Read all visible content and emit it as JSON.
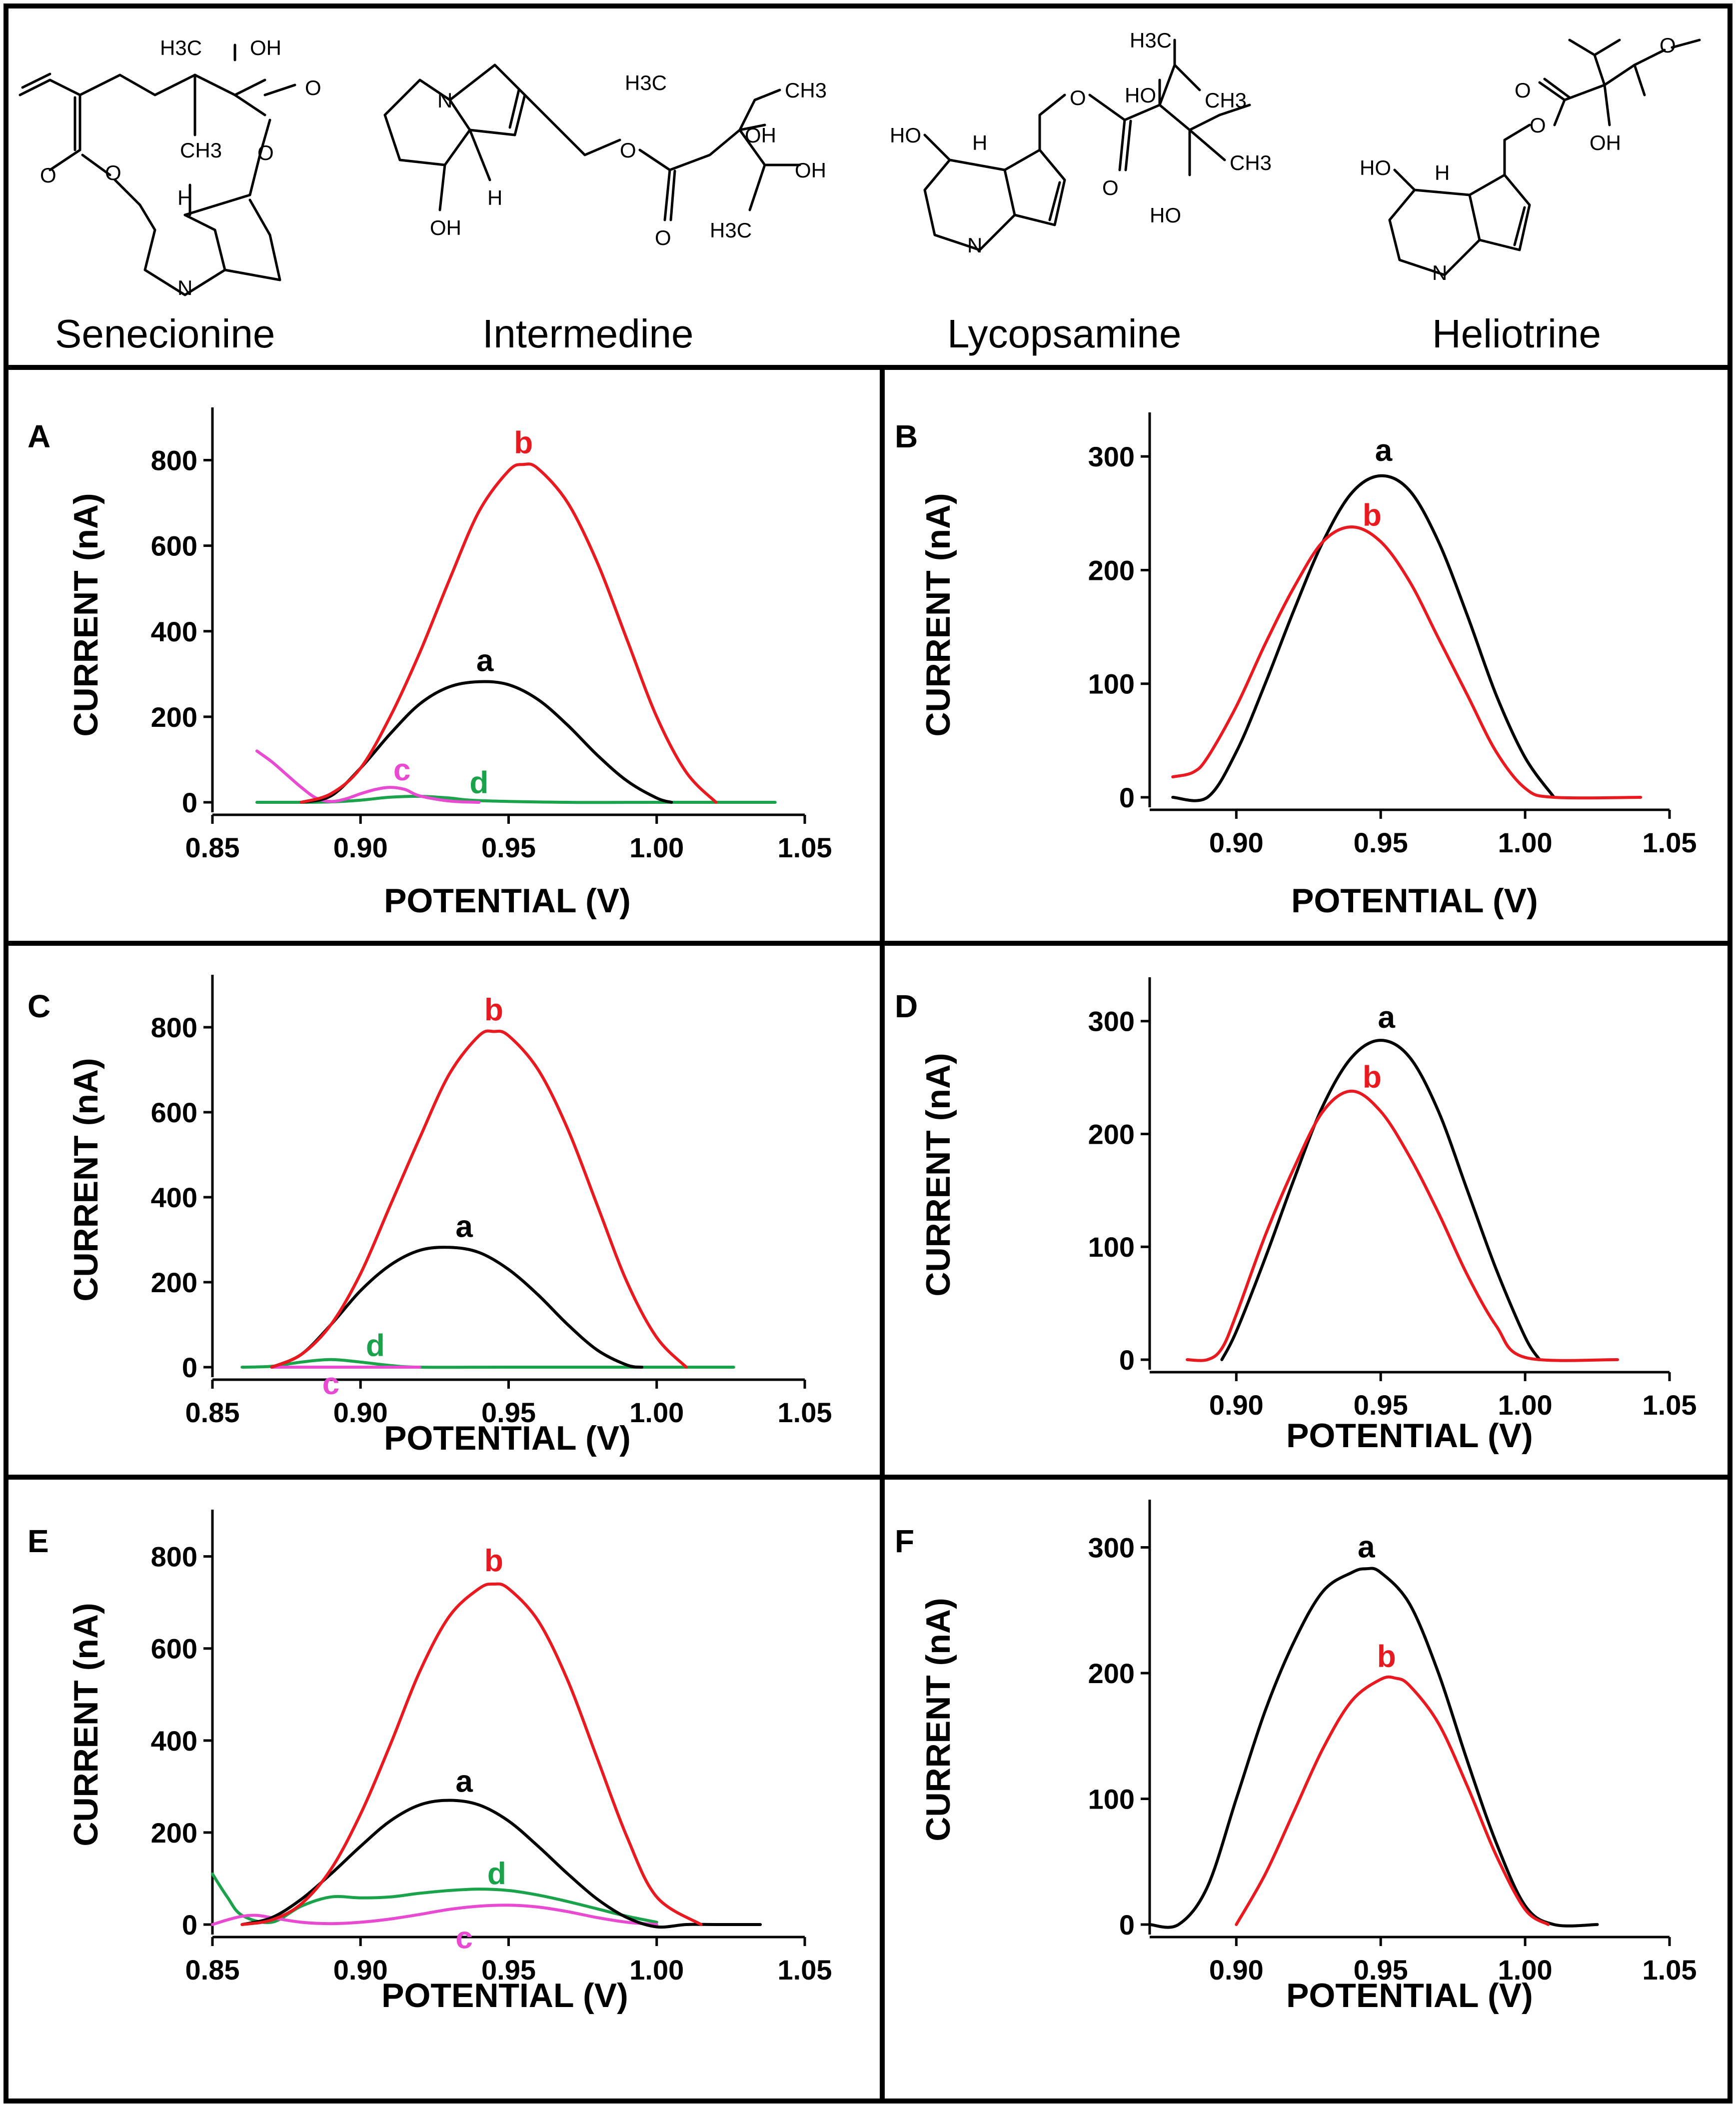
{
  "compounds": [
    {
      "name": "Senecionine",
      "atoms": [
        "H3C",
        "OH",
        "CH3",
        "O",
        "O",
        "O",
        "O",
        "H",
        "N"
      ]
    },
    {
      "name": "Intermedine",
      "atoms": [
        "N",
        "H3C",
        "CH3",
        "OH",
        "OH",
        "H",
        "OH",
        "O",
        "O",
        "H3C"
      ]
    },
    {
      "name": "Lycopsamine",
      "atoms": [
        "H3C",
        "HO",
        "CH3",
        "HO",
        "H",
        "O",
        "CH3",
        "O",
        "HO",
        "N"
      ]
    },
    {
      "name": "Heliotrine",
      "atoms": [
        "O",
        "O",
        "HO",
        "H",
        "OH",
        "O",
        "N"
      ]
    }
  ],
  "colors": {
    "a": "#000000",
    "b": "#e8191f",
    "c": "#e84ad1",
    "d": "#1aa34a"
  },
  "chart_data": [
    {
      "panel": "A",
      "type": "line",
      "xlabel": "POTENTIAL (V)",
      "ylabel": "CURRENT (nA)",
      "xlim": [
        0.85,
        1.05
      ],
      "ylim": [
        0,
        900
      ],
      "xticks": [
        "0.85",
        "0.90",
        "0.95",
        "1.00",
        "1.05"
      ],
      "yticks": [
        "0",
        "200",
        "400",
        "600",
        "800"
      ],
      "series": [
        {
          "name": "a",
          "x": [
            0.88,
            0.89,
            0.9,
            0.91,
            0.92,
            0.93,
            0.94,
            0.95,
            0.96,
            0.97,
            0.98,
            0.99,
            1.0,
            1.005
          ],
          "y": [
            0,
            15,
            80,
            160,
            230,
            270,
            282,
            275,
            240,
            180,
            110,
            50,
            10,
            0
          ]
        },
        {
          "name": "b",
          "x": [
            0.88,
            0.89,
            0.9,
            0.91,
            0.92,
            0.93,
            0.94,
            0.95,
            0.955,
            0.96,
            0.97,
            0.98,
            0.99,
            1.0,
            1.01,
            1.02
          ],
          "y": [
            0,
            20,
            80,
            200,
            350,
            520,
            680,
            775,
            790,
            780,
            700,
            560,
            380,
            200,
            70,
            0
          ]
        },
        {
          "name": "c",
          "x": [
            0.865,
            0.87,
            0.875,
            0.88,
            0.885,
            0.89,
            0.895,
            0.9,
            0.905,
            0.91,
            0.915,
            0.92,
            0.93,
            0.94
          ],
          "y": [
            120,
            95,
            65,
            35,
            10,
            2,
            8,
            20,
            30,
            35,
            30,
            15,
            3,
            0
          ]
        },
        {
          "name": "d",
          "x": [
            0.865,
            0.88,
            0.89,
            0.9,
            0.91,
            0.92,
            0.93,
            0.94,
            0.97,
            1.0,
            1.04
          ],
          "y": [
            0,
            0,
            1,
            5,
            12,
            14,
            10,
            4,
            0,
            0,
            0
          ]
        }
      ],
      "labels": [
        {
          "text": "b",
          "x": 0.955,
          "y": 840
        },
        {
          "text": "a",
          "x": 0.942,
          "y": 330
        },
        {
          "text": "c",
          "x": 0.914,
          "y": 75
        },
        {
          "text": "d",
          "x": 0.94,
          "y": 45
        }
      ]
    },
    {
      "panel": "B",
      "type": "line",
      "xlabel": "POTENTIAL (V)",
      "ylabel": "CURRENT (nA)",
      "xlim": [
        0.87,
        1.05
      ],
      "ylim": [
        0,
        330
      ],
      "xticks": [
        "0.90",
        "0.95",
        "1.00",
        "1.05"
      ],
      "yticks": [
        "0",
        "100",
        "200",
        "300"
      ],
      "series": [
        {
          "name": "a",
          "x": [
            0.878,
            0.89,
            0.9,
            0.91,
            0.92,
            0.93,
            0.94,
            0.95,
            0.96,
            0.97,
            0.98,
            0.99,
            1.0,
            1.01
          ],
          "y": [
            0,
            0,
            40,
            100,
            165,
            225,
            268,
            283,
            270,
            225,
            160,
            90,
            35,
            0
          ]
        },
        {
          "name": "b",
          "x": [
            0.878,
            0.885,
            0.89,
            0.9,
            0.91,
            0.92,
            0.93,
            0.94,
            0.95,
            0.96,
            0.97,
            0.98,
            0.99,
            1.0,
            1.01,
            1.04
          ],
          "y": [
            18,
            22,
            35,
            80,
            135,
            185,
            225,
            238,
            225,
            190,
            140,
            90,
            40,
            8,
            0,
            0
          ]
        }
      ],
      "labels": [
        {
          "text": "a",
          "x": 0.951,
          "y": 305
        },
        {
          "text": "b",
          "x": 0.947,
          "y": 248
        }
      ]
    },
    {
      "panel": "C",
      "type": "line",
      "xlabel": "POTENTIAL (V)",
      "ylabel": "CURRENT (nA)",
      "xlim": [
        0.85,
        1.05
      ],
      "ylim": [
        0,
        900
      ],
      "xticks": [
        "0.85",
        "0.90",
        "0.95",
        "1.00",
        "1.05"
      ],
      "yticks": [
        "0",
        "200",
        "400",
        "600",
        "800"
      ],
      "series": [
        {
          "name": "a",
          "x": [
            0.87,
            0.88,
            0.89,
            0.9,
            0.91,
            0.92,
            0.93,
            0.94,
            0.95,
            0.96,
            0.97,
            0.98,
            0.99,
            0.995
          ],
          "y": [
            0,
            30,
            100,
            180,
            240,
            275,
            282,
            270,
            230,
            170,
            100,
            40,
            5,
            0
          ]
        },
        {
          "name": "b",
          "x": [
            0.87,
            0.88,
            0.89,
            0.9,
            0.91,
            0.92,
            0.93,
            0.94,
            0.945,
            0.95,
            0.96,
            0.97,
            0.98,
            0.99,
            1.0,
            1.01
          ],
          "y": [
            0,
            30,
            100,
            220,
            380,
            540,
            690,
            780,
            790,
            780,
            700,
            560,
            380,
            200,
            70,
            0
          ]
        },
        {
          "name": "c",
          "x": [
            0.87,
            0.88,
            0.89,
            0.9,
            0.91,
            0.92
          ],
          "y": [
            0,
            0,
            0,
            0,
            0,
            0
          ]
        },
        {
          "name": "d",
          "x": [
            0.86,
            0.87,
            0.88,
            0.89,
            0.9,
            0.91,
            0.92,
            0.95,
            1.0,
            1.026
          ],
          "y": [
            0,
            2,
            12,
            18,
            12,
            4,
            0,
            0,
            0,
            0
          ]
        }
      ],
      "labels": [
        {
          "text": "b",
          "x": 0.945,
          "y": 840
        },
        {
          "text": "a",
          "x": 0.935,
          "y": 330
        },
        {
          "text": "d",
          "x": 0.905,
          "y": 50
        },
        {
          "text": "c",
          "x": 0.89,
          "y": -40
        }
      ]
    },
    {
      "panel": "D",
      "type": "line",
      "xlabel": "POTENTIAL (V)",
      "ylabel": "CURRENT (nA)",
      "xlim": [
        0.87,
        1.05
      ],
      "ylim": [
        0,
        330
      ],
      "xticks": [
        "0.90",
        "0.95",
        "1.00",
        "1.05"
      ],
      "yticks": [
        "0",
        "100",
        "200",
        "300"
      ],
      "series": [
        {
          "name": "a",
          "x": [
            0.895,
            0.9,
            0.91,
            0.92,
            0.93,
            0.94,
            0.95,
            0.96,
            0.97,
            0.98,
            0.99,
            1.0,
            1.005
          ],
          "y": [
            0,
            25,
            90,
            160,
            225,
            268,
            283,
            268,
            220,
            150,
            80,
            20,
            0
          ]
        },
        {
          "name": "b",
          "x": [
            0.883,
            0.89,
            0.895,
            0.9,
            0.91,
            0.92,
            0.93,
            0.94,
            0.95,
            0.96,
            0.97,
            0.98,
            0.99,
            1.0,
            1.032
          ],
          "y": [
            0,
            0,
            10,
            40,
            110,
            170,
            220,
            238,
            220,
            180,
            130,
            75,
            30,
            2,
            0
          ]
        }
      ],
      "labels": [
        {
          "text": "a",
          "x": 0.952,
          "y": 303
        },
        {
          "text": "b",
          "x": 0.947,
          "y": 250
        }
      ]
    },
    {
      "panel": "E",
      "type": "line",
      "xlabel": "POTENTIAL (V)",
      "ylabel": "CURRENT (nA)",
      "xlim": [
        0.85,
        1.05
      ],
      "ylim": [
        0,
        880
      ],
      "xticks": [
        "0.85",
        "0.90",
        "0.95",
        "1.00",
        "1.05"
      ],
      "yticks": [
        "0",
        "200",
        "400",
        "600",
        "800"
      ],
      "series": [
        {
          "name": "a",
          "x": [
            0.86,
            0.87,
            0.88,
            0.89,
            0.9,
            0.91,
            0.92,
            0.93,
            0.94,
            0.95,
            0.96,
            0.97,
            0.98,
            0.99,
            1.0,
            1.01,
            1.02,
            1.035
          ],
          "y": [
            0,
            15,
            55,
            110,
            170,
            225,
            260,
            270,
            260,
            225,
            170,
            110,
            55,
            15,
            -5,
            0,
            0,
            0
          ]
        },
        {
          "name": "b",
          "x": [
            0.86,
            0.87,
            0.88,
            0.89,
            0.9,
            0.91,
            0.92,
            0.93,
            0.94,
            0.945,
            0.95,
            0.96,
            0.97,
            0.98,
            0.99,
            1.0,
            1.015
          ],
          "y": [
            0,
            10,
            45,
            120,
            240,
            390,
            550,
            670,
            730,
            740,
            730,
            660,
            530,
            360,
            190,
            60,
            0
          ]
        },
        {
          "name": "c",
          "x": [
            0.85,
            0.855,
            0.86,
            0.865,
            0.87,
            0.88,
            0.89,
            0.9,
            0.91,
            0.92,
            0.93,
            0.94,
            0.95,
            0.96,
            0.97,
            0.98,
            0.99,
            1.0
          ],
          "y": [
            0,
            10,
            18,
            20,
            15,
            5,
            2,
            5,
            12,
            22,
            33,
            40,
            42,
            38,
            28,
            15,
            5,
            0
          ]
        },
        {
          "name": "d",
          "x": [
            0.85,
            0.855,
            0.86,
            0.87,
            0.88,
            0.89,
            0.9,
            0.91,
            0.92,
            0.93,
            0.94,
            0.95,
            0.96,
            0.97,
            0.98,
            0.99,
            1.0
          ],
          "y": [
            110,
            60,
            20,
            5,
            40,
            60,
            58,
            60,
            68,
            74,
            77,
            74,
            64,
            50,
            34,
            18,
            5
          ]
        }
      ],
      "labels": [
        {
          "text": "b",
          "x": 0.945,
          "y": 790
        },
        {
          "text": "a",
          "x": 0.935,
          "y": 310
        },
        {
          "text": "d",
          "x": 0.946,
          "y": 110
        },
        {
          "text": "c",
          "x": 0.935,
          "y": -30
        }
      ]
    },
    {
      "panel": "F",
      "type": "line",
      "xlabel": "POTENTIAL (V)",
      "ylabel": "CURRENT (nA)",
      "xlim": [
        0.87,
        1.05
      ],
      "ylim": [
        0,
        330
      ],
      "xticks": [
        "0.90",
        "0.95",
        "1.00",
        "1.05"
      ],
      "yticks": [
        "0",
        "100",
        "200",
        "300"
      ],
      "series": [
        {
          "name": "a",
          "x": [
            0.87,
            0.88,
            0.89,
            0.9,
            0.91,
            0.92,
            0.93,
            0.94,
            0.945,
            0.95,
            0.96,
            0.97,
            0.98,
            0.99,
            1.0,
            1.01,
            1.025
          ],
          "y": [
            0,
            0,
            30,
            100,
            170,
            225,
            265,
            280,
            283,
            280,
            255,
            200,
            130,
            65,
            15,
            0,
            0
          ]
        },
        {
          "name": "b",
          "x": [
            0.9,
            0.91,
            0.92,
            0.93,
            0.94,
            0.95,
            0.955,
            0.96,
            0.97,
            0.98,
            0.99,
            1.0,
            1.008
          ],
          "y": [
            0,
            40,
            90,
            140,
            178,
            195,
            196,
            190,
            160,
            110,
            55,
            12,
            0
          ]
        }
      ],
      "labels": [
        {
          "text": "a",
          "x": 0.945,
          "y": 300
        },
        {
          "text": "b",
          "x": 0.952,
          "y": 213
        }
      ]
    }
  ]
}
